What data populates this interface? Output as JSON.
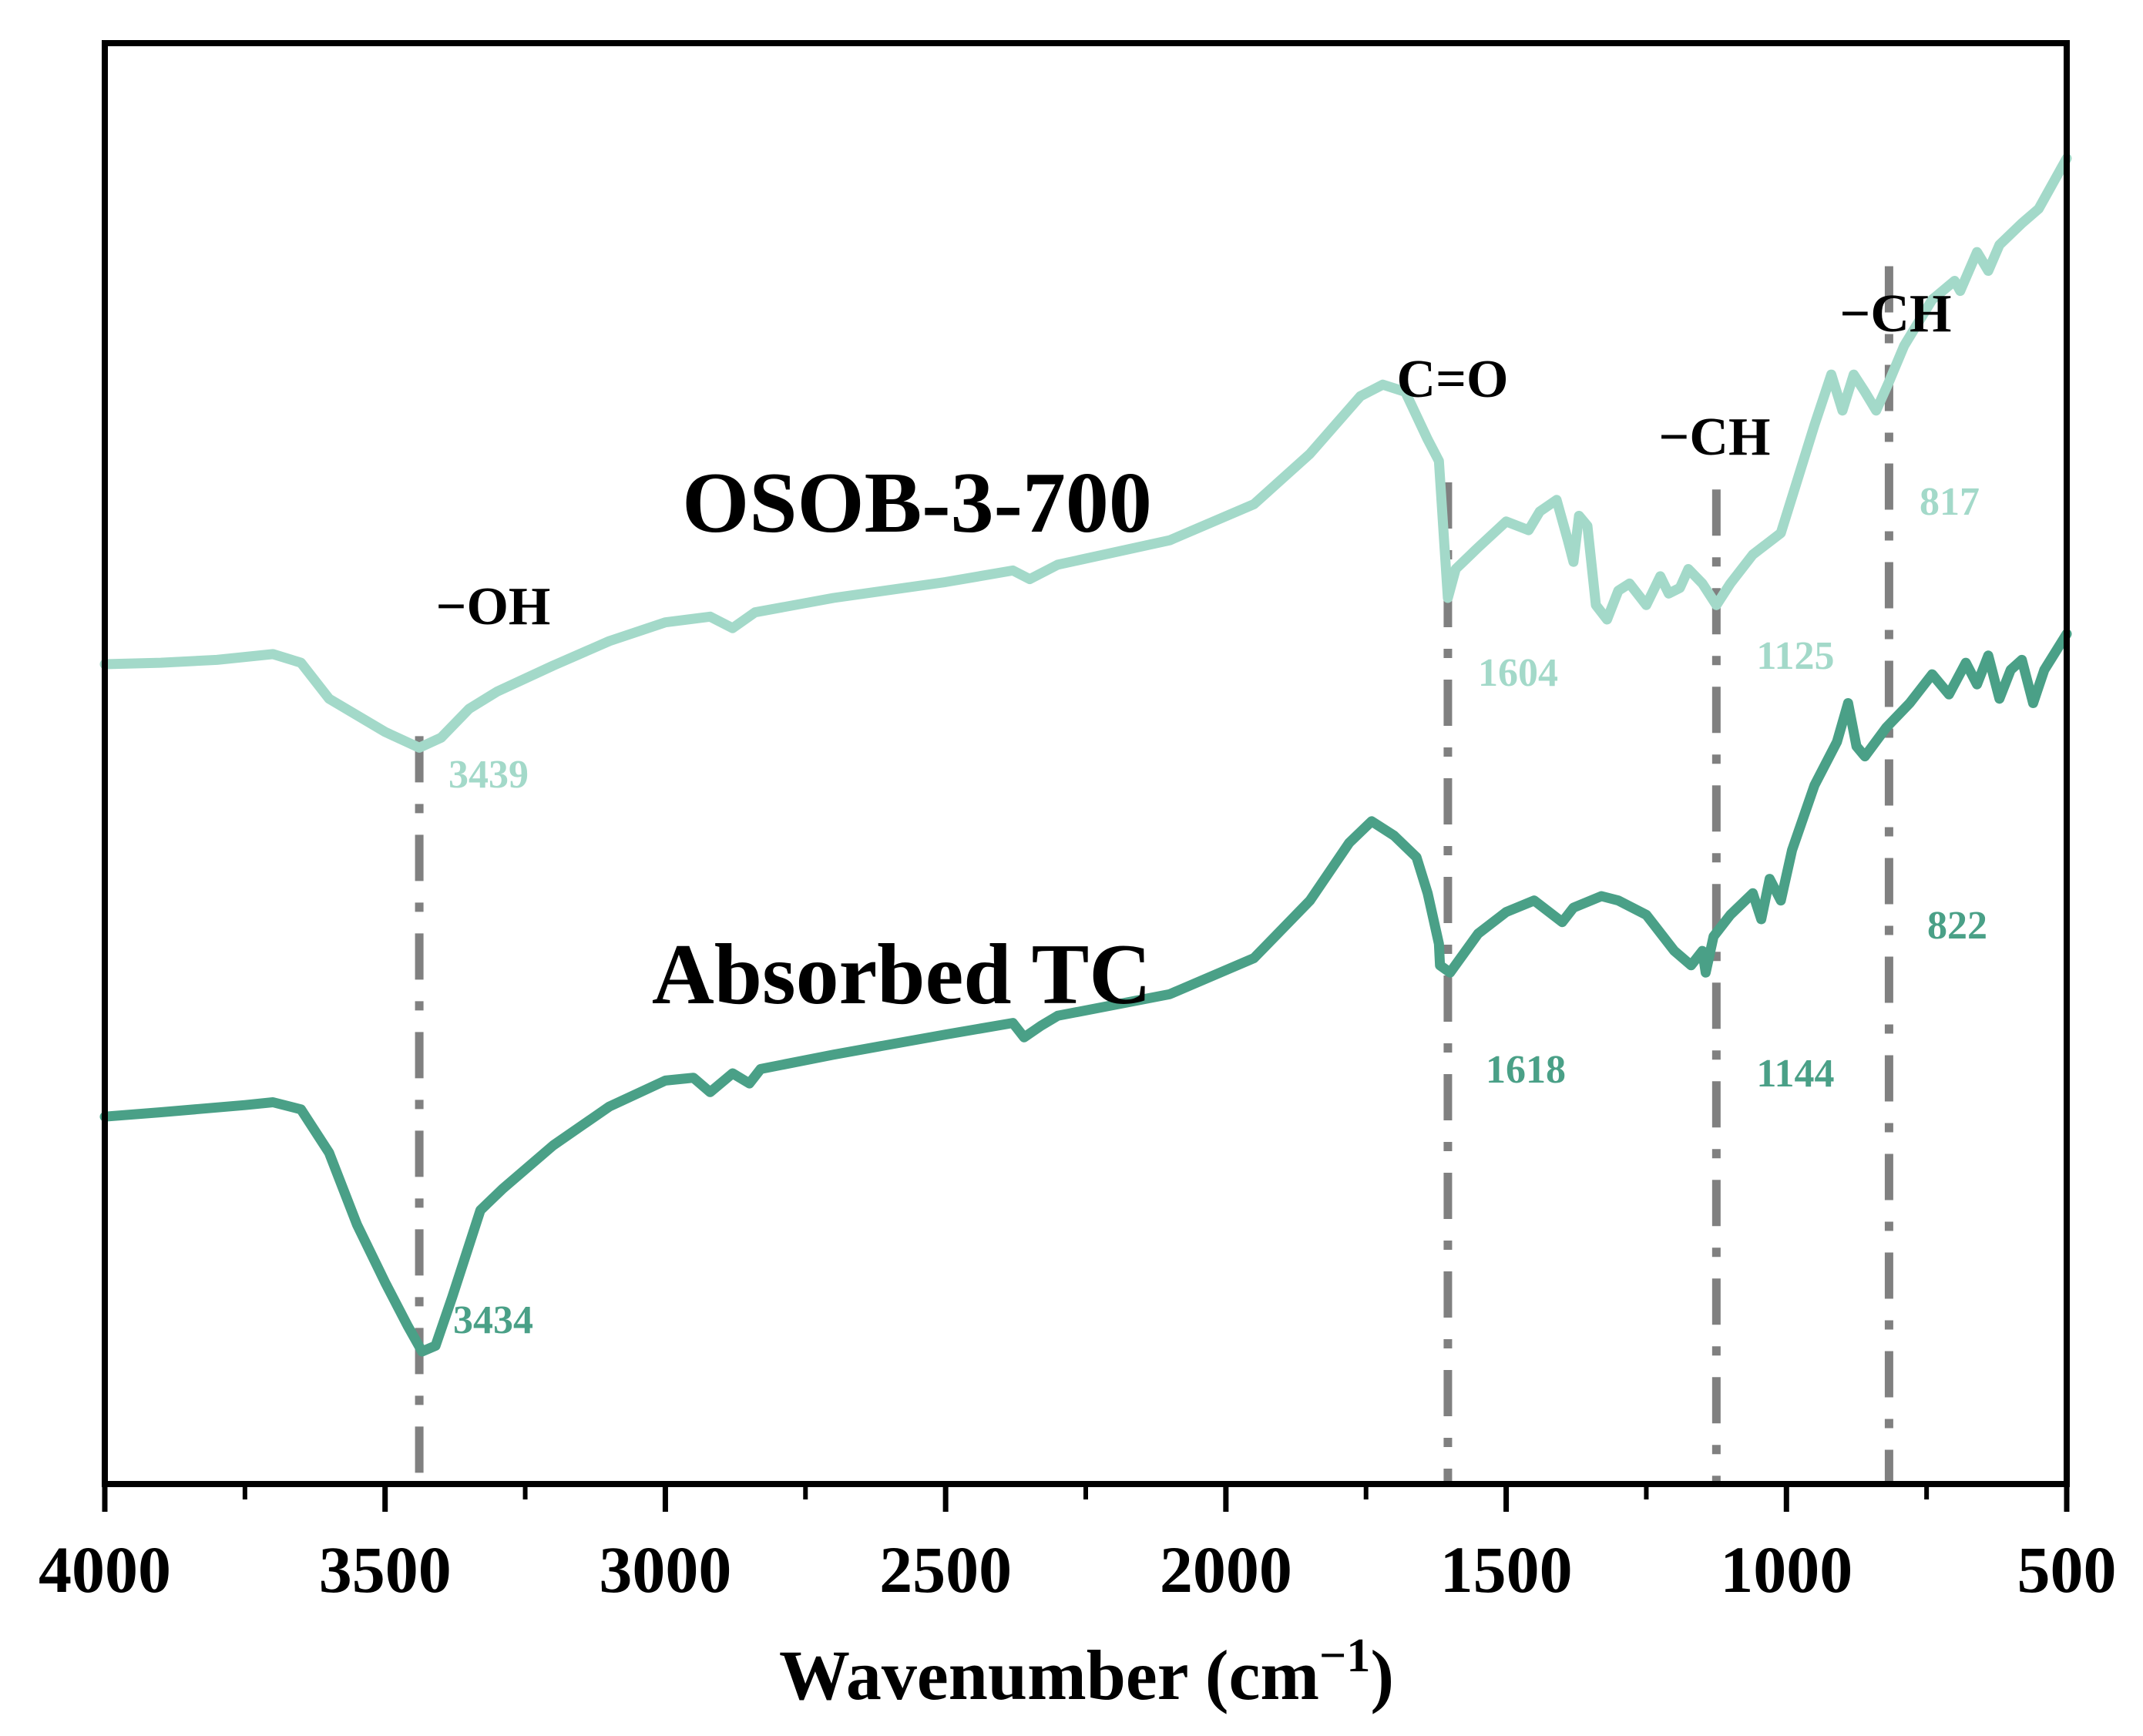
{
  "chart_data": {
    "type": "line",
    "title": "",
    "xlabel": "Wavenumber (cm",
    "xlabel_superscript": "−1",
    "xlabel_suffix": ")",
    "ylabel": "",
    "xlim": [
      4000,
      500
    ],
    "x_reversed": true,
    "y_units": "transmittance (a.u., offset)",
    "ylim": [
      0,
      10
    ],
    "y_ticks_shown": false,
    "grid": false,
    "x_ticks": [
      4000,
      3500,
      3000,
      2500,
      2000,
      1500,
      1000,
      500
    ],
    "x_tick_labels": [
      "4000",
      "3500",
      "3000",
      "2500",
      "2000",
      "1500",
      "1000",
      "500"
    ],
    "x_minor_ticks": [
      3750,
      3250,
      2750,
      2250,
      1750,
      1250,
      750
    ],
    "series": [
      {
        "name": "OSOB-3-700",
        "label": "OSOB-3-700",
        "color": "#a3d9c9",
        "points": [
          [
            4000,
            5.69
          ],
          [
            3900,
            5.7
          ],
          [
            3800,
            5.72
          ],
          [
            3700,
            5.76
          ],
          [
            3650,
            5.7
          ],
          [
            3600,
            5.45
          ],
          [
            3500,
            5.22
          ],
          [
            3439,
            5.11
          ],
          [
            3400,
            5.18
          ],
          [
            3350,
            5.38
          ],
          [
            3300,
            5.5
          ],
          [
            3200,
            5.68
          ],
          [
            3100,
            5.85
          ],
          [
            3000,
            5.98
          ],
          [
            2920,
            6.02
          ],
          [
            2880,
            5.94
          ],
          [
            2840,
            6.05
          ],
          [
            2700,
            6.15
          ],
          [
            2500,
            6.26
          ],
          [
            2380,
            6.34
          ],
          [
            2350,
            6.28
          ],
          [
            2300,
            6.38
          ],
          [
            2100,
            6.55
          ],
          [
            1950,
            6.8
          ],
          [
            1850,
            7.15
          ],
          [
            1760,
            7.55
          ],
          [
            1720,
            7.63
          ],
          [
            1680,
            7.58
          ],
          [
            1640,
            7.25
          ],
          [
            1620,
            7.1
          ],
          [
            1610,
            6.5
          ],
          [
            1604,
            6.15
          ],
          [
            1590,
            6.35
          ],
          [
            1550,
            6.5
          ],
          [
            1500,
            6.68
          ],
          [
            1460,
            6.62
          ],
          [
            1440,
            6.75
          ],
          [
            1410,
            6.83
          ],
          [
            1390,
            6.55
          ],
          [
            1380,
            6.4
          ],
          [
            1370,
            6.72
          ],
          [
            1355,
            6.65
          ],
          [
            1340,
            6.1
          ],
          [
            1320,
            6.0
          ],
          [
            1300,
            6.2
          ],
          [
            1280,
            6.25
          ],
          [
            1250,
            6.1
          ],
          [
            1225,
            6.3
          ],
          [
            1210,
            6.18
          ],
          [
            1190,
            6.22
          ],
          [
            1175,
            6.35
          ],
          [
            1150,
            6.25
          ],
          [
            1125,
            6.1
          ],
          [
            1100,
            6.25
          ],
          [
            1060,
            6.45
          ],
          [
            1010,
            6.6
          ],
          [
            990,
            6.85
          ],
          [
            950,
            7.35
          ],
          [
            920,
            7.7
          ],
          [
            900,
            7.45
          ],
          [
            880,
            7.7
          ],
          [
            860,
            7.58
          ],
          [
            840,
            7.45
          ],
          [
            817,
            7.65
          ],
          [
            790,
            7.9
          ],
          [
            740,
            8.22
          ],
          [
            700,
            8.35
          ],
          [
            690,
            8.28
          ],
          [
            660,
            8.55
          ],
          [
            640,
            8.42
          ],
          [
            620,
            8.6
          ],
          [
            580,
            8.75
          ],
          [
            550,
            8.85
          ],
          [
            500,
            9.2
          ]
        ]
      },
      {
        "name": "Absorbed TC",
        "label": "Absorbed TC",
        "color": "#4aa087",
        "points": [
          [
            4000,
            2.55
          ],
          [
            3900,
            2.58
          ],
          [
            3750,
            2.63
          ],
          [
            3700,
            2.65
          ],
          [
            3650,
            2.6
          ],
          [
            3600,
            2.3
          ],
          [
            3550,
            1.8
          ],
          [
            3500,
            1.4
          ],
          [
            3460,
            1.1
          ],
          [
            3434,
            0.92
          ],
          [
            3410,
            0.96
          ],
          [
            3380,
            1.3
          ],
          [
            3330,
            1.9
          ],
          [
            3290,
            2.05
          ],
          [
            3200,
            2.35
          ],
          [
            3100,
            2.62
          ],
          [
            3000,
            2.8
          ],
          [
            2950,
            2.82
          ],
          [
            2920,
            2.72
          ],
          [
            2880,
            2.85
          ],
          [
            2850,
            2.78
          ],
          [
            2830,
            2.88
          ],
          [
            2700,
            2.98
          ],
          [
            2500,
            3.12
          ],
          [
            2380,
            3.2
          ],
          [
            2360,
            3.1
          ],
          [
            2330,
            3.18
          ],
          [
            2300,
            3.25
          ],
          [
            2100,
            3.4
          ],
          [
            1950,
            3.65
          ],
          [
            1850,
            4.05
          ],
          [
            1780,
            4.45
          ],
          [
            1740,
            4.6
          ],
          [
            1700,
            4.5
          ],
          [
            1660,
            4.35
          ],
          [
            1640,
            4.1
          ],
          [
            1620,
            3.75
          ],
          [
            1618,
            3.6
          ],
          [
            1600,
            3.55
          ],
          [
            1550,
            3.82
          ],
          [
            1500,
            3.97
          ],
          [
            1450,
            4.05
          ],
          [
            1400,
            3.9
          ],
          [
            1380,
            4.0
          ],
          [
            1330,
            4.08
          ],
          [
            1300,
            4.05
          ],
          [
            1250,
            3.95
          ],
          [
            1200,
            3.7
          ],
          [
            1170,
            3.6
          ],
          [
            1150,
            3.7
          ],
          [
            1144,
            3.55
          ],
          [
            1130,
            3.8
          ],
          [
            1100,
            3.95
          ],
          [
            1060,
            4.1
          ],
          [
            1045,
            3.92
          ],
          [
            1030,
            4.2
          ],
          [
            1010,
            4.05
          ],
          [
            990,
            4.4
          ],
          [
            950,
            4.85
          ],
          [
            910,
            5.15
          ],
          [
            890,
            5.42
          ],
          [
            875,
            5.12
          ],
          [
            860,
            5.05
          ],
          [
            822,
            5.25
          ],
          [
            780,
            5.42
          ],
          [
            740,
            5.62
          ],
          [
            710,
            5.48
          ],
          [
            680,
            5.7
          ],
          [
            660,
            5.55
          ],
          [
            640,
            5.75
          ],
          [
            620,
            5.45
          ],
          [
            600,
            5.65
          ],
          [
            580,
            5.72
          ],
          [
            560,
            5.42
          ],
          [
            540,
            5.65
          ],
          [
            500,
            5.9
          ]
        ]
      }
    ],
    "markers": [
      {
        "x": 3439,
        "group": "−OH",
        "peaks": [
          3439,
          3434
        ]
      },
      {
        "x": 1604,
        "group": "C=O",
        "peaks": [
          1604,
          1618
        ]
      },
      {
        "x": 1125,
        "group": "−CH",
        "peaks": [
          1125,
          1144
        ]
      },
      {
        "x": 817,
        "group": "−CH",
        "peaks": [
          817,
          822
        ]
      }
    ],
    "annotations": [
      {
        "text": "3439",
        "series": "OSOB-3-700",
        "x": 3439
      },
      {
        "text": "1604",
        "series": "OSOB-3-700",
        "x": 1604
      },
      {
        "text": "1125",
        "series": "OSOB-3-700",
        "x": 1125
      },
      {
        "text": "817",
        "series": "OSOB-3-700",
        "x": 817
      },
      {
        "text": "3434",
        "series": "Absorbed TC",
        "x": 3434
      },
      {
        "text": "1618",
        "series": "Absorbed TC",
        "x": 1618
      },
      {
        "text": "1144",
        "series": "Absorbed TC",
        "x": 1144
      },
      {
        "text": "822",
        "series": "Absorbed TC",
        "x": 822
      }
    ]
  }
}
